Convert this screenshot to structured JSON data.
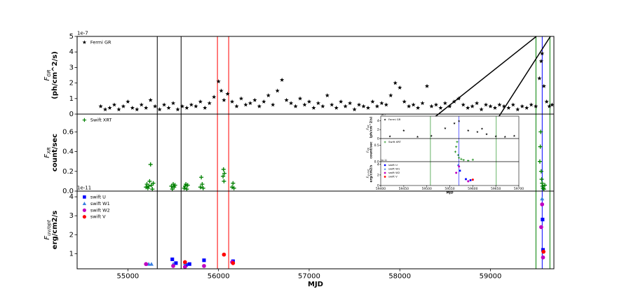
{
  "chart_data": [
    {
      "type": "scatter",
      "y_offset": "1e-7",
      "ylabel_symbol": "F",
      "ylabel_sub": "GR",
      "ylabel": "(ph/cm^2/s)",
      "xlim": [
        54440,
        59700
      ],
      "ylim": [
        0,
        5
      ],
      "yticks": [
        0,
        1,
        2,
        3,
        4,
        5
      ],
      "vlines": [
        {
          "x": 55324,
          "color": "#000000"
        },
        {
          "x": 55587,
          "color": "#000000"
        },
        {
          "x": 55988,
          "color": "#ff0000"
        },
        {
          "x": 56112,
          "color": "#ff0000"
        },
        {
          "x": 59502,
          "color": "#008000"
        },
        {
          "x": 59571,
          "color": "#0000ff"
        },
        {
          "x": 59656,
          "color": "#008000"
        }
      ],
      "series": [
        {
          "name": "Fermi GR",
          "color": "#000000",
          "marker": "star",
          "x": [
            54700,
            54750,
            54800,
            54850,
            54900,
            54950,
            55000,
            55050,
            55100,
            55150,
            55200,
            55250,
            55300,
            55350,
            55400,
            55450,
            55500,
            55550,
            55600,
            55650,
            55700,
            55750,
            55800,
            55850,
            55900,
            55950,
            56000,
            56030,
            56060,
            56100,
            56150,
            56200,
            56250,
            56300,
            56350,
            56400,
            56450,
            56500,
            56550,
            56600,
            56650,
            56700,
            56750,
            56800,
            56850,
            56900,
            56950,
            57000,
            57050,
            57100,
            57150,
            57200,
            57250,
            57300,
            57350,
            57400,
            57450,
            57500,
            57550,
            57600,
            57650,
            57700,
            57750,
            57800,
            57850,
            57900,
            57950,
            58000,
            58050,
            58100,
            58150,
            58200,
            58250,
            58300,
            58350,
            58400,
            58450,
            58500,
            58550,
            58600,
            58650,
            58700,
            58750,
            58800,
            58850,
            58900,
            58950,
            59000,
            59050,
            59100,
            59150,
            59200,
            59250,
            59300,
            59350,
            59400,
            59450,
            59500,
            59540,
            59560,
            59570,
            59590,
            59620,
            59650,
            59680
          ],
          "y": [
            0.5,
            0.3,
            0.4,
            0.6,
            0.3,
            0.5,
            0.8,
            0.4,
            0.3,
            0.6,
            0.4,
            0.9,
            0.5,
            0.3,
            0.6,
            0.4,
            0.7,
            0.3,
            0.5,
            0.4,
            0.6,
            0.5,
            0.8,
            0.4,
            0.7,
            1.1,
            2.1,
            1.5,
            0.9,
            1.3,
            0.8,
            0.5,
            1.0,
            0.6,
            0.7,
            0.9,
            0.5,
            0.8,
            1.2,
            0.6,
            1.5,
            2.2,
            0.9,
            0.7,
            0.5,
            1.0,
            0.6,
            0.8,
            0.4,
            0.7,
            0.5,
            1.2,
            0.6,
            0.4,
            0.8,
            0.5,
            0.7,
            0.3,
            0.6,
            0.5,
            0.4,
            0.8,
            0.5,
            0.7,
            0.6,
            1.2,
            2.0,
            1.7,
            0.8,
            0.5,
            0.6,
            0.4,
            0.7,
            1.8,
            0.5,
            0.6,
            0.4,
            0.7,
            0.5,
            0.8,
            1.0,
            0.6,
            0.4,
            0.5,
            0.7,
            0.3,
            0.6,
            0.5,
            0.4,
            0.6,
            0.5,
            0.4,
            0.6,
            0.3,
            0.5,
            0.4,
            0.6,
            0.5,
            2.3,
            3.4,
            3.9,
            1.8,
            0.8,
            0.5,
            0.6
          ]
        }
      ]
    },
    {
      "type": "scatter",
      "ylabel_symbol": "F",
      "ylabel_sub": "XR",
      "ylabel": "count/sec",
      "xlim": [
        54440,
        59700
      ],
      "ylim": [
        0,
        0.78
      ],
      "yticks": [
        {
          "value": 0,
          "label": "0.0"
        },
        {
          "value": 0.2,
          "label": "0.2"
        },
        {
          "value": 0.4,
          "label": "0.4"
        },
        {
          "value": 0.6,
          "label": "0.6"
        }
      ],
      "vlines": [
        {
          "x": 55324,
          "color": "#000000"
        },
        {
          "x": 55587,
          "color": "#000000"
        },
        {
          "x": 55988,
          "color": "#ff0000"
        },
        {
          "x": 56112,
          "color": "#ff0000"
        },
        {
          "x": 59502,
          "color": "#008000"
        },
        {
          "x": 59571,
          "color": "#0000ff"
        },
        {
          "x": 59656,
          "color": "#008000"
        }
      ],
      "series": [
        {
          "name": "Swift XRT",
          "color": "#008000",
          "marker": "plus",
          "x": [
            55200,
            55210,
            55220,
            55230,
            55240,
            55250,
            55260,
            55270,
            55280,
            55480,
            55490,
            55500,
            55510,
            55520,
            55620,
            55630,
            55640,
            55650,
            55660,
            55800,
            55810,
            55820,
            55830,
            56050,
            56055,
            56060,
            56065,
            56150,
            56160,
            56170,
            59545,
            59550,
            59555,
            59560,
            59565,
            59570,
            59575,
            59580,
            59590,
            59600
          ],
          "y": [
            0.04,
            0.07,
            0.03,
            0.05,
            0.1,
            0.27,
            0.06,
            0.02,
            0.08,
            0.05,
            0.02,
            0.07,
            0.04,
            0.06,
            0.03,
            0.05,
            0.07,
            0.02,
            0.06,
            0.04,
            0.14,
            0.07,
            0.03,
            0.15,
            0.22,
            0.1,
            0.18,
            0.04,
            0.08,
            0.03,
            0.3,
            0.45,
            0.6,
            0.2,
            0.12,
            0.08,
            0.05,
            0.03,
            0.02,
            0.06
          ]
        }
      ]
    },
    {
      "type": "scatter",
      "y_offset": "1e-11",
      "ylabel_symbol": "F",
      "ylabel_sub": "uv/opt",
      "ylabel": "erg/cm2/s",
      "xlabel": "MJD",
      "xlim": [
        54440,
        59700
      ],
      "ylim": [
        0.2,
        4.3
      ],
      "yticks": [
        1,
        2,
        3,
        4
      ],
      "xticks": [
        55000,
        56000,
        57000,
        58000,
        59000
      ],
      "vlines": [
        {
          "x": 55324,
          "color": "#000000"
        },
        {
          "x": 55587,
          "color": "#000000"
        },
        {
          "x": 55988,
          "color": "#ff0000"
        },
        {
          "x": 56112,
          "color": "#ff0000"
        },
        {
          "x": 59502,
          "color": "#008000"
        },
        {
          "x": 59571,
          "color": "#0000ff"
        },
        {
          "x": 59656,
          "color": "#008000"
        }
      ],
      "series": [
        {
          "name": "swift U",
          "color": "#0000ff",
          "marker": "square",
          "x": [
            55490,
            55530,
            55640,
            55680,
            55840,
            56160,
            59575,
            59580
          ],
          "y": [
            0.7,
            0.5,
            0.4,
            0.45,
            0.65,
            0.6,
            2.8,
            1.2
          ]
        },
        {
          "name": "swift W1",
          "color": "#3a7fe0",
          "marker": "triangle",
          "x": [
            55230,
            55260,
            55500,
            55630,
            59570
          ],
          "y": [
            0.45,
            0.45,
            0.45,
            0.5,
            3.9
          ]
        },
        {
          "name": "swift W2",
          "color": "#c000c0",
          "marker": "circle",
          "x": [
            55200,
            55500,
            55630,
            55840,
            56150,
            59560,
            59570,
            59580
          ],
          "y": [
            0.45,
            0.35,
            0.3,
            0.35,
            0.55,
            2.4,
            3.6,
            0.8
          ]
        },
        {
          "name": "swift V",
          "color": "#ff0000",
          "marker": "circle",
          "x": [
            55630,
            56060,
            56160,
            59585
          ],
          "y": [
            0.55,
            0.95,
            0.5,
            1.1
          ]
        }
      ]
    },
    {
      "type": "scatter",
      "y_offset": "1e-7",
      "ylabel_symbol": "F",
      "ylabel_sub": "GR",
      "ylabel": "(ph/cm^2/s)",
      "xlim": [
        59400,
        59700
      ],
      "ylim": [
        0,
        5
      ],
      "yticks": [
        0,
        2,
        4
      ],
      "vlines": [
        {
          "x": 59508,
          "color": "#008000"
        },
        {
          "x": 59570,
          "color": "#0000ff"
        },
        {
          "x": 59651,
          "color": "#008000"
        }
      ],
      "series": [
        {
          "name": "Fermi GR",
          "color": "#000000",
          "marker": "star",
          "x": [
            59420,
            59450,
            59480,
            59510,
            59540,
            59560,
            59570,
            59590,
            59610,
            59620,
            59630,
            59650,
            59670,
            59690
          ],
          "y": [
            0.5,
            1.8,
            0.4,
            0.6,
            2.3,
            3.4,
            3.9,
            1.8,
            1.5,
            2.2,
            1.0,
            0.5,
            0.4,
            0.6
          ]
        }
      ]
    },
    {
      "type": "scatter",
      "ylabel_symbol": "F",
      "ylabel_sub": "XR",
      "ylabel": "count/sec",
      "xlim": [
        59400,
        59700
      ],
      "ylim": [
        0,
        0.7
      ],
      "yticks": [
        {
          "value": 0,
          "label": "0.0"
        },
        {
          "value": 0.5,
          "label": "0.5"
        }
      ],
      "vlines": [
        {
          "x": 59508,
          "color": "#008000"
        },
        {
          "x": 59570,
          "color": "#0000ff"
        },
        {
          "x": 59651,
          "color": "#008000"
        }
      ],
      "series": [
        {
          "name": "Swift XRT",
          "color": "#008000",
          "marker": "plus",
          "x": [
            59562,
            59564,
            59566,
            59568,
            59570,
            59575,
            59580,
            59590,
            59600
          ],
          "y": [
            0.3,
            0.45,
            0.6,
            0.2,
            0.12,
            0.08,
            0.05,
            0.03,
            0.06
          ]
        }
      ]
    },
    {
      "type": "scatter",
      "y_offset": "1e-11",
      "ylabel_symbol": "F",
      "ylabel_sub": "uv/opt",
      "ylabel": "erg/cm2/s",
      "xlabel": "MJD",
      "xlim": [
        59400,
        59700
      ],
      "ylim": [
        0,
        4.5
      ],
      "yticks": [
        0,
        2,
        4
      ],
      "xticks": [
        59400,
        59450,
        59500,
        59550,
        59600,
        59650,
        59700
      ],
      "vlines": [
        {
          "x": 59508,
          "color": "#008000"
        },
        {
          "x": 59570,
          "color": "#0000ff"
        },
        {
          "x": 59651,
          "color": "#008000"
        }
      ],
      "series": [
        {
          "name": "swift U",
          "color": "#0000ff",
          "marker": "square",
          "x": [
            59572,
            59585,
            59595
          ],
          "y": [
            2.8,
            1.2,
            1.0
          ]
        },
        {
          "name": "swift W1",
          "color": "#3a7fe0",
          "marker": "triangle",
          "x": [
            59568
          ],
          "y": [
            3.9
          ]
        },
        {
          "name": "swift W2",
          "color": "#c000c0",
          "marker": "circle",
          "x": [
            59564,
            59570,
            59590
          ],
          "y": [
            2.4,
            3.6,
            0.8
          ]
        },
        {
          "name": "swift V",
          "color": "#ff0000",
          "marker": "circle",
          "x": [
            59600
          ],
          "y": [
            1.1
          ]
        }
      ]
    }
  ]
}
